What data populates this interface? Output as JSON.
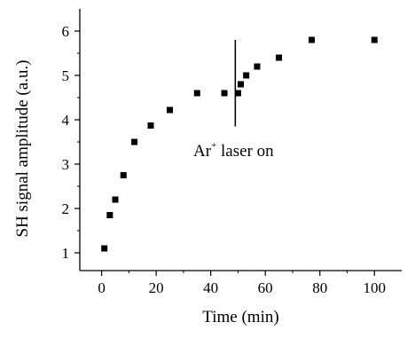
{
  "chart_data": {
    "type": "scatter",
    "title": "",
    "xlabel": "Time (min)",
    "ylabel": "SH signal amplitude (a.u.)",
    "xlim": [
      -8,
      110
    ],
    "ylim": [
      0.6,
      6.5
    ],
    "xticks": [
      0,
      20,
      40,
      60,
      80,
      100
    ],
    "yticks": [
      1,
      2,
      3,
      4,
      5,
      6
    ],
    "grid": false,
    "legend": "none",
    "marker": "square",
    "color": "#000000",
    "series": [
      {
        "points": [
          [
            1,
            1.1
          ],
          [
            3,
            1.85
          ],
          [
            5,
            2.2
          ],
          [
            8,
            2.75
          ],
          [
            12,
            3.5
          ],
          [
            18,
            3.87
          ],
          [
            25,
            4.22
          ],
          [
            35,
            4.6
          ],
          [
            45,
            4.6
          ],
          [
            50,
            4.6
          ],
          [
            51,
            4.8
          ],
          [
            53,
            5.0
          ],
          [
            57,
            5.2
          ],
          [
            65,
            5.4
          ],
          [
            77,
            5.8
          ],
          [
            100,
            5.8
          ]
        ]
      }
    ],
    "annotations": [
      {
        "text": "Ar",
        "superscript": "+",
        "suffix": " laser on",
        "line_x": 49,
        "line_y": [
          3.85,
          5.8
        ]
      }
    ]
  }
}
